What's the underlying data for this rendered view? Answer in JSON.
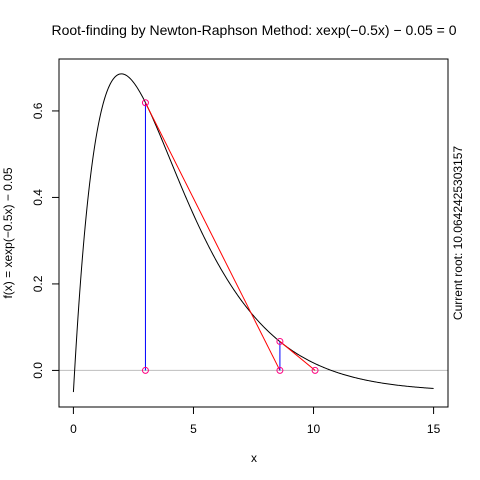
{
  "chart_data": {
    "type": "line",
    "title": "Root-finding by Newton-Raphson Method: xexp(−0.5x) − 0.05 = 0",
    "xlabel": "x",
    "ylabel": "f(x) = xexp(−0.5x) − 0.05",
    "side_text": "Current root: 10.0642425303157",
    "xlim": [
      -0.6,
      15.6
    ],
    "ylim": [
      -0.0846,
      0.7201
    ],
    "x_ticks": [
      0,
      5,
      10,
      15
    ],
    "y_ticks": [
      0.0,
      0.2,
      0.4,
      0.6
    ],
    "y_tick_labels": [
      "0.0",
      "0.2",
      "0.4",
      "0.6"
    ],
    "function_domain": [
      0,
      15
    ],
    "zero_line": 0,
    "iterations": [
      {
        "x0": 3.0,
        "f0": 0.619,
        "x1": 8.6
      },
      {
        "x0": 8.6,
        "f0": 0.067,
        "x1": 10.0642425303157
      }
    ],
    "colors": {
      "curve": "#000000",
      "tangent": "#ff0000",
      "vertical": "#0000ff",
      "points": "#ff0080",
      "zero_line": "#bebebe"
    }
  }
}
